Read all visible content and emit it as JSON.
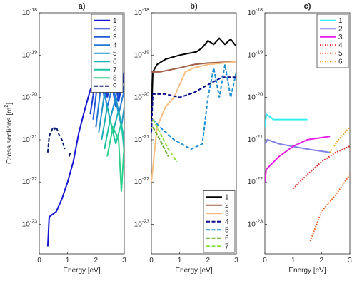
{
  "chart_data": [
    {
      "type": "line",
      "title": "a)",
      "xlabel": "Energy [eV]",
      "ylabel": "Cross sections [m^2]",
      "xlim": [
        0,
        3
      ],
      "xticks": [
        0,
        1,
        2,
        3
      ],
      "ylim": [
        2e-24,
        1e-18
      ],
      "log_y": true,
      "yticks": [
        {
          "value": 1e-23,
          "label": "10^-23"
        },
        {
          "value": 1e-22,
          "label": "10^-22"
        },
        {
          "value": 1e-21,
          "label": "10^-21"
        },
        {
          "value": 1e-20,
          "label": "10^-20"
        },
        {
          "value": 1e-19,
          "label": "10^-19"
        },
        {
          "value": 1e-18,
          "label": "10^-18"
        }
      ],
      "legend": "upper-right",
      "series": [
        {
          "name": "1",
          "color": "#1414d2",
          "dash": "solid",
          "x": [
            0.3,
            0.35,
            0.6,
            0.8,
            1.0,
            1.2,
            1.4,
            1.6,
            1.8,
            2.0,
            2.2,
            2.4,
            2.6,
            2.8,
            3.0
          ],
          "values": [
            3e-24,
            1.5e-23,
            2e-23,
            4e-23,
            1e-22,
            3e-22,
            1.5e-21,
            5e-21,
            1.5e-20,
            3e-20,
            4e-20,
            1.5e-20,
            3e-20,
            1e-20,
            3e-20
          ]
        },
        {
          "name": "2",
          "color": "#1a3cd6",
          "dash": "solid",
          "x": [
            1.8,
            2.0,
            2.2,
            2.4,
            2.6,
            2.8,
            3.0
          ],
          "values": [
            4e-21,
            3e-20,
            4.5e-20,
            1e-20,
            4.5e-20,
            8e-21,
            4e-20
          ]
        },
        {
          "name": "3",
          "color": "#1f5ad8",
          "dash": "solid",
          "x": [
            1.9,
            2.1,
            2.3,
            2.5,
            2.7,
            2.9,
            3.0
          ],
          "values": [
            3e-21,
            4e-20,
            1e-20,
            3.5e-20,
            6e-21,
            3e-20,
            1e-20
          ]
        },
        {
          "name": "4",
          "color": "#237ad6",
          "dash": "solid",
          "x": [
            2.0,
            2.2,
            2.4,
            2.6,
            2.8,
            3.0
          ],
          "values": [
            2e-21,
            2.5e-20,
            6e-21,
            2e-20,
            4e-21,
            1.5e-20
          ]
        },
        {
          "name": "5",
          "color": "#2096c8",
          "dash": "solid",
          "x": [
            2.1,
            2.3,
            2.5,
            2.7,
            2.9,
            3.0
          ],
          "values": [
            1.5e-21,
            1.2e-20,
            3e-21,
            1e-20,
            2e-21,
            6e-21
          ]
        },
        {
          "name": "6",
          "color": "#1fb0b4",
          "dash": "solid",
          "x": [
            2.2,
            2.4,
            2.6,
            2.8,
            3.0
          ],
          "values": [
            1e-21,
            6e-21,
            1.5e-21,
            5e-21,
            1e-21
          ]
        },
        {
          "name": "7",
          "color": "#20c4a0",
          "dash": "solid",
          "x": [
            2.3,
            2.5,
            2.7,
            2.9,
            3.0
          ],
          "values": [
            6e-22,
            3e-21,
            8e-22,
            2.5e-21,
            5e-22
          ]
        },
        {
          "name": "8",
          "color": "#2ad08a",
          "dash": "solid",
          "x": [
            2.4,
            2.6,
            2.8,
            2.9,
            3.0
          ],
          "values": [
            4e-22,
            2e-21,
            1e-21,
            6e-23,
            8e-22
          ]
        },
        {
          "name": "9",
          "color": "#0d1d6e",
          "dash": "dashed",
          "x": [
            0.3,
            0.35,
            0.4,
            0.5,
            0.55,
            0.6,
            0.7,
            0.8,
            0.9,
            1.0,
            1.05,
            1.1
          ],
          "values": [
            5e-22,
            1.2e-21,
            1.5e-21,
            2e-21,
            1.8e-21,
            2e-21,
            1.3e-21,
            1e-21,
            6e-22,
            null,
            4e-22,
            5e-22
          ]
        }
      ]
    },
    {
      "type": "line",
      "title": "b)",
      "xlabel": "Energy [eV]",
      "xlim": [
        0,
        3
      ],
      "xticks": [
        0,
        1,
        2,
        3
      ],
      "ylim": [
        2e-24,
        1e-18
      ],
      "log_y": true,
      "yticks": [
        {
          "value": 1e-23,
          "label": "10^-23"
        },
        {
          "value": 1e-22,
          "label": "10^-22"
        },
        {
          "value": 1e-21,
          "label": "10^-21"
        },
        {
          "value": 1e-20,
          "label": "10^-20"
        },
        {
          "value": 1e-19,
          "label": "10^-19"
        },
        {
          "value": 1e-18,
          "label": "10^-18"
        }
      ],
      "legend": "lower-right",
      "series": [
        {
          "name": "1",
          "color": "#000000",
          "dash": "solid",
          "x": [
            0.0,
            0.05,
            0.2,
            0.5,
            1.0,
            1.6,
            1.8,
            2.0,
            2.2,
            2.4,
            2.6,
            2.8,
            3.0
          ],
          "values": [
            3e-21,
            4e-20,
            6e-20,
            8e-20,
            1e-19,
            1.2e-19,
            1.5e-19,
            2.2e-19,
            1.8e-19,
            2.5e-19,
            1.8e-19,
            2.4e-19,
            1.6e-19
          ]
        },
        {
          "name": "2",
          "color": "#a0624a",
          "dash": "solid",
          "x": [
            0.0,
            0.3,
            1.0,
            1.5,
            2.0,
            3.0
          ],
          "values": [
            4e-20,
            4e-20,
            5e-20,
            6e-20,
            6.5e-20,
            7e-20
          ]
        },
        {
          "name": "3",
          "color": "#f9be82",
          "dash": "solid",
          "x": [
            0.0,
            0.2,
            0.5,
            0.8,
            1.2,
            1.5,
            2.0,
            3.0
          ],
          "values": [
            1e-22,
            2e-21,
            6e-21,
            1e-20,
            4e-20,
            5e-20,
            6e-20,
            7e-20
          ]
        },
        {
          "name": "4",
          "color": "#0a0a8c",
          "dash": "dashed",
          "x": [
            0.0,
            0.05,
            0.5,
            1.0,
            1.5,
            2.0,
            2.5,
            3.0
          ],
          "values": [
            1.5e-21,
            1.2e-20,
            1.2e-20,
            1e-20,
            1.3e-20,
            2e-20,
            3e-20,
            3e-20
          ]
        },
        {
          "name": "5",
          "color": "#1e8fd6",
          "dash": "dashed",
          "x": [
            0.05,
            0.3,
            0.8,
            1.4,
            1.8,
            2.0,
            2.2,
            2.4,
            2.6,
            2.8,
            3.0
          ],
          "values": [
            3e-21,
            2e-21,
            1e-21,
            6e-22,
            8e-22,
            1e-20,
            5e-20,
            1e-20,
            6e-20,
            1e-20,
            4e-20
          ]
        },
        {
          "name": "6",
          "color": "#5aa81e",
          "dash": "dashed",
          "x": [
            0.05,
            0.3,
            0.6
          ],
          "values": [
            2e-21,
            1e-21,
            4e-22
          ]
        },
        {
          "name": "7",
          "color": "#8ee03a",
          "dash": "dashed",
          "x": [
            0.05,
            0.3,
            0.6,
            0.9
          ],
          "values": [
            3e-21,
            1.5e-21,
            6e-22,
            3e-22
          ]
        }
      ]
    },
    {
      "type": "line",
      "title": "c)",
      "xlabel": "Energy [eV]",
      "xlim": [
        0,
        3
      ],
      "xticks": [
        0,
        1,
        2,
        3
      ],
      "ylim": [
        2e-24,
        1e-18
      ],
      "log_y": true,
      "yticks": [
        {
          "value": 1e-23,
          "label": "10^-23"
        },
        {
          "value": 1e-22,
          "label": "10^-22"
        },
        {
          "value": 1e-21,
          "label": "10^-21"
        },
        {
          "value": 1e-20,
          "label": "10^-20"
        },
        {
          "value": 1e-19,
          "label": "10^-19"
        },
        {
          "value": 1e-18,
          "label": "10^-18"
        }
      ],
      "legend": "upper-right",
      "series": [
        {
          "name": "1",
          "color": "#33f0f0",
          "dash": "solid",
          "x": [
            0.0,
            0.05,
            0.3,
            1.5
          ],
          "values": [
            2e-21,
            4e-21,
            3e-21,
            3e-21
          ]
        },
        {
          "name": "2",
          "color": "#8080e6",
          "dash": "solid",
          "x": [
            0.0,
            0.1,
            0.5,
            1.5,
            2.3
          ],
          "values": [
            8e-22,
            1e-21,
            8e-22,
            6e-22,
            5e-22
          ]
        },
        {
          "name": "3",
          "color": "#e61ee6",
          "dash": "solid",
          "x": [
            0.0,
            0.05,
            0.5,
            1.0,
            1.5,
            2.3
          ],
          "values": [
            1e-22,
            2e-22,
            4e-22,
            7e-22,
            1e-21,
            1.2e-21
          ]
        },
        {
          "name": "4",
          "color": "#e01e1e",
          "dash": "dotted",
          "x": [
            1.0,
            1.5,
            2.0,
            2.5,
            3.0
          ],
          "values": [
            7e-23,
            1.5e-22,
            3e-22,
            5e-22,
            7e-22
          ]
        },
        {
          "name": "5",
          "color": "#f05a14",
          "dash": "dotted",
          "x": [
            1.6,
            2.0,
            2.5,
            3.0
          ],
          "values": [
            4e-24,
            2e-23,
            5e-23,
            1.5e-22
          ]
        },
        {
          "name": "6",
          "color": "#f5a020",
          "dash": "dotted",
          "x": [
            2.3,
            2.6,
            3.0
          ],
          "values": [
            5e-22,
            1e-21,
            2e-21
          ]
        }
      ]
    }
  ]
}
